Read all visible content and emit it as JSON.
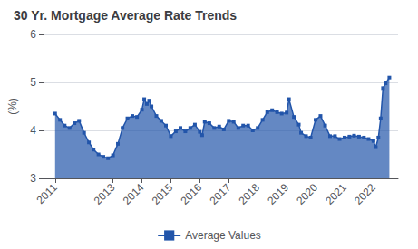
{
  "chart_data": {
    "type": "area",
    "title": "30 Yr. Mortgage Average Rate Trends",
    "ylabel": "(%)",
    "x": [
      2011.0,
      2011.17,
      2011.33,
      2011.5,
      2011.67,
      2011.83,
      2012.0,
      2012.17,
      2012.33,
      2012.5,
      2012.67,
      2012.83,
      2013.0,
      2013.17,
      2013.33,
      2013.5,
      2013.67,
      2013.83,
      2014.0,
      2014.08,
      2014.17,
      2014.25,
      2014.33,
      2014.5,
      2014.67,
      2014.83,
      2015.0,
      2015.17,
      2015.33,
      2015.5,
      2015.67,
      2015.83,
      2016.0,
      2016.08,
      2016.17,
      2016.33,
      2016.5,
      2016.67,
      2016.83,
      2017.0,
      2017.17,
      2017.33,
      2017.5,
      2017.67,
      2017.83,
      2018.0,
      2018.17,
      2018.33,
      2018.5,
      2018.67,
      2018.83,
      2019.0,
      2019.08,
      2019.25,
      2019.42,
      2019.5,
      2019.67,
      2019.83,
      2020.0,
      2020.17,
      2020.33,
      2020.5,
      2020.67,
      2020.83,
      2021.0,
      2021.17,
      2021.33,
      2021.5,
      2021.67,
      2021.83,
      2022.0,
      2022.08,
      2022.17,
      2022.25,
      2022.33,
      2022.42,
      2022.55
    ],
    "series": [
      {
        "name": "Average Values",
        "color": "#2255aa",
        "marker": "square",
        "values": [
          4.35,
          4.22,
          4.1,
          4.05,
          4.15,
          4.2,
          3.95,
          3.75,
          3.6,
          3.5,
          3.45,
          3.42,
          3.48,
          3.72,
          4.05,
          4.25,
          4.3,
          4.28,
          4.43,
          4.65,
          4.55,
          4.62,
          4.5,
          4.3,
          4.2,
          4.1,
          3.88,
          3.98,
          4.05,
          3.98,
          4.05,
          4.12,
          3.97,
          3.9,
          4.18,
          4.15,
          4.05,
          4.08,
          4.02,
          4.2,
          4.18,
          4.05,
          4.1,
          4.1,
          4.0,
          4.05,
          4.22,
          4.38,
          4.42,
          4.38,
          4.35,
          4.37,
          4.65,
          4.28,
          4.12,
          3.95,
          3.88,
          3.85,
          4.22,
          4.3,
          4.1,
          3.88,
          3.88,
          3.82,
          3.85,
          3.87,
          3.89,
          3.87,
          3.85,
          3.82,
          3.78,
          3.65,
          3.85,
          4.25,
          4.88,
          4.98,
          5.1
        ]
      }
    ],
    "xlim": [
      2010.6,
      2022.85
    ],
    "xticks": [
      2011,
      2013,
      2014,
      2015,
      2016,
      2017,
      2018,
      2019,
      2020,
      2021,
      2022
    ],
    "ylim": [
      3.0,
      6.0
    ],
    "yticks": [
      3,
      4,
      5,
      6
    ],
    "grid": true,
    "legend": "bottom"
  }
}
